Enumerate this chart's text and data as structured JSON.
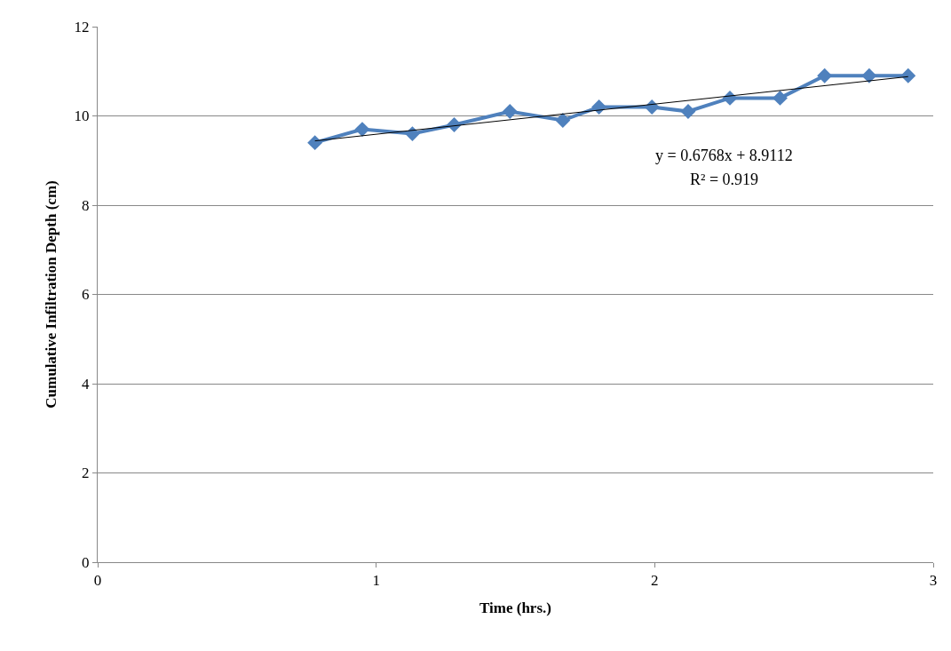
{
  "chart_data": {
    "type": "line",
    "xlabel": "Time (hrs.)",
    "ylabel": "Cumulative Infiltration Depth (cm)",
    "x": [
      0.78,
      0.95,
      1.13,
      1.28,
      1.48,
      1.67,
      1.8,
      1.99,
      2.12,
      2.27,
      2.45,
      2.61,
      2.77,
      2.91
    ],
    "series": [
      {
        "color": "#4f81bd",
        "values": [
          9.4,
          9.7,
          9.6,
          9.8,
          10.1,
          9.9,
          10.2,
          10.2,
          10.1,
          10.4,
          10.4,
          10.9,
          10.9,
          10.9
        ]
      },
      {
        "type": "line",
        "color": "#000000",
        "x": [
          0.78,
          2.91
        ],
        "values": [
          9.44,
          10.88
        ],
        "marker": "none"
      }
    ],
    "annotations": [
      "y = 0.6768x + 8.9112",
      "R² = 0.919"
    ],
    "xlim": [
      0,
      3
    ],
    "xticks": [
      0,
      1,
      2,
      3
    ],
    "ylim": [
      0,
      12
    ],
    "yticks": [
      0,
      2,
      4,
      6,
      8,
      10,
      12
    ],
    "grid": "y",
    "marker": "diamond",
    "line_style": "solid"
  }
}
